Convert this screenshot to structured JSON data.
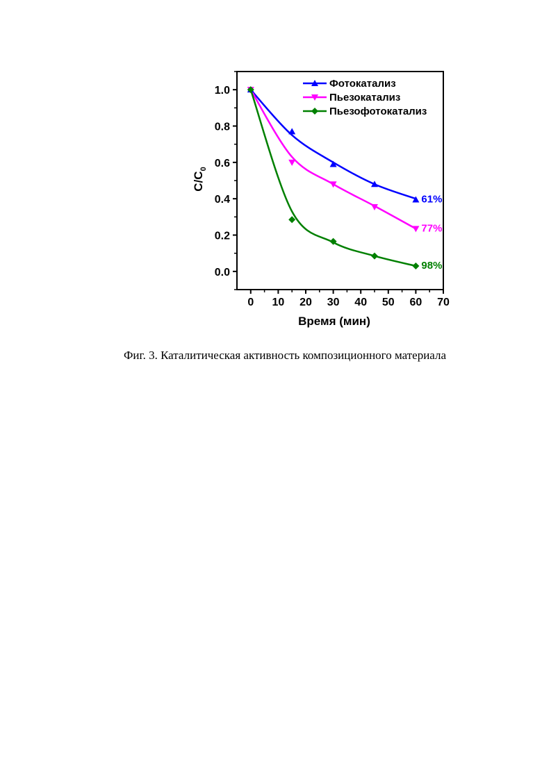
{
  "caption": "Фиг. 3. Каталитическая активность композиционного материала",
  "chart_data": {
    "type": "line",
    "xlabel": "Время (мин)",
    "ylabel": "C/C",
    "ylabel_subscript": "0",
    "xlim": [
      -5,
      70
    ],
    "ylim": [
      -0.1,
      1.1
    ],
    "xticks": [
      0,
      10,
      20,
      30,
      40,
      50,
      60,
      70
    ],
    "yticks": [
      0.0,
      0.2,
      0.4,
      0.6,
      0.8,
      1.0
    ],
    "xtick_labels": [
      "0",
      "10",
      "20",
      "30",
      "40",
      "50",
      "60",
      "70"
    ],
    "ytick_labels": [
      "0.0",
      "0.2",
      "0.4",
      "0.6",
      "0.8",
      "1.0"
    ],
    "legend_position": "top-right",
    "series": [
      {
        "name": "Фотокатализ",
        "color": "#0000ff",
        "marker": "triangle-up",
        "x": [
          0,
          15,
          30,
          45,
          60
        ],
        "y": [
          1.0,
          0.77,
          0.59,
          0.48,
          0.395
        ],
        "fit": [
          1.0,
          0.75,
          0.6,
          0.48,
          0.4
        ],
        "end_label": "61%"
      },
      {
        "name": "Пьезокатализ",
        "color": "#ff00ff",
        "marker": "triangle-down",
        "x": [
          0,
          15,
          30,
          45,
          60
        ],
        "y": [
          1.0,
          0.6,
          0.48,
          0.355,
          0.235
        ],
        "fit": [
          1.0,
          0.63,
          0.48,
          0.36,
          0.235
        ],
        "end_label": "77%"
      },
      {
        "name": "Пьезофотокатализ",
        "color": "#008000",
        "marker": "diamond",
        "x": [
          0,
          15,
          30,
          45,
          60
        ],
        "y": [
          1.0,
          0.285,
          0.165,
          0.085,
          0.03
        ],
        "fit": [
          1.0,
          0.33,
          0.16,
          0.085,
          0.03
        ],
        "end_label": "98%"
      }
    ]
  }
}
